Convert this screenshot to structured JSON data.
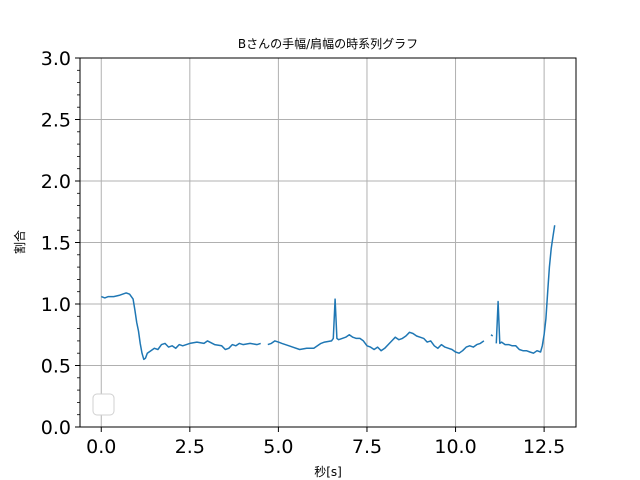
{
  "chart_data": {
    "type": "line",
    "title": "Bさんの手幅/肩幅の時系列グラフ",
    "xlabel": "秒[s]",
    "ylabel": "割合",
    "xlim": [
      -0.6,
      13.4
    ],
    "ylim": [
      0.0,
      3.0
    ],
    "xticks": [
      0.0,
      2.5,
      5.0,
      7.5,
      10.0,
      12.5
    ],
    "xtick_labels": [
      "0.0",
      "2.5",
      "5.0",
      "7.5",
      "10.0",
      "12.5"
    ],
    "yticks": [
      0.0,
      0.5,
      1.0,
      1.5,
      2.0,
      2.5,
      3.0
    ],
    "ytick_labels": [
      "0.0",
      "0.5",
      "1.0",
      "1.5",
      "2.0",
      "2.5",
      "3.0"
    ],
    "grid": true,
    "legend": "lower-left (empty)",
    "line_color": "#1f77b4",
    "series": [
      {
        "segments": [
          [
            [
              0.0,
              1.06
            ],
            [
              0.1,
              1.05
            ],
            [
              0.2,
              1.06
            ],
            [
              0.35,
              1.06
            ],
            [
              0.5,
              1.07
            ],
            [
              0.6,
              1.08
            ],
            [
              0.7,
              1.09
            ],
            [
              0.8,
              1.08
            ],
            [
              0.9,
              1.04
            ],
            [
              0.95,
              0.95
            ],
            [
              1.0,
              0.85
            ],
            [
              1.05,
              0.78
            ],
            [
              1.1,
              0.68
            ],
            [
              1.15,
              0.6
            ],
            [
              1.2,
              0.55
            ],
            [
              1.25,
              0.56
            ],
            [
              1.3,
              0.6
            ],
            [
              1.4,
              0.62
            ],
            [
              1.5,
              0.64
            ],
            [
              1.6,
              0.63
            ],
            [
              1.7,
              0.67
            ],
            [
              1.8,
              0.68
            ],
            [
              1.9,
              0.65
            ],
            [
              2.0,
              0.66
            ],
            [
              2.1,
              0.64
            ],
            [
              2.2,
              0.67
            ],
            [
              2.3,
              0.66
            ],
            [
              2.5,
              0.68
            ],
            [
              2.7,
              0.69
            ],
            [
              2.9,
              0.68
            ],
            [
              3.0,
              0.7
            ],
            [
              3.2,
              0.67
            ],
            [
              3.4,
              0.66
            ],
            [
              3.5,
              0.63
            ],
            [
              3.6,
              0.64
            ],
            [
              3.7,
              0.67
            ],
            [
              3.8,
              0.66
            ],
            [
              3.9,
              0.68
            ],
            [
              4.0,
              0.67
            ],
            [
              4.2,
              0.68
            ],
            [
              4.4,
              0.67
            ],
            [
              4.5,
              0.68
            ]
          ],
          [
            [
              4.7,
              0.67
            ],
            [
              4.8,
              0.68
            ],
            [
              4.9,
              0.7
            ],
            [
              5.0,
              0.69
            ],
            [
              5.1,
              0.68
            ],
            [
              5.3,
              0.66
            ],
            [
              5.4,
              0.65
            ],
            [
              5.6,
              0.63
            ],
            [
              5.8,
              0.64
            ],
            [
              6.0,
              0.64
            ],
            [
              6.2,
              0.68
            ],
            [
              6.3,
              0.69
            ],
            [
              6.5,
              0.7
            ],
            [
              6.55,
              0.72
            ],
            [
              6.6,
              1.04
            ],
            [
              6.65,
              0.72
            ],
            [
              6.7,
              0.71
            ],
            [
              6.8,
              0.72
            ],
            [
              6.9,
              0.73
            ],
            [
              7.0,
              0.75
            ],
            [
              7.1,
              0.73
            ],
            [
              7.2,
              0.72
            ],
            [
              7.3,
              0.72
            ],
            [
              7.4,
              0.7
            ],
            [
              7.5,
              0.66
            ],
            [
              7.6,
              0.65
            ],
            [
              7.7,
              0.63
            ],
            [
              7.8,
              0.65
            ],
            [
              7.9,
              0.62
            ],
            [
              8.0,
              0.64
            ],
            [
              8.1,
              0.67
            ],
            [
              8.2,
              0.7
            ],
            [
              8.3,
              0.73
            ],
            [
              8.4,
              0.71
            ],
            [
              8.5,
              0.72
            ],
            [
              8.6,
              0.74
            ],
            [
              8.7,
              0.77
            ],
            [
              8.8,
              0.76
            ],
            [
              8.9,
              0.74
            ],
            [
              9.0,
              0.73
            ],
            [
              9.1,
              0.72
            ],
            [
              9.2,
              0.69
            ],
            [
              9.3,
              0.7
            ],
            [
              9.4,
              0.66
            ],
            [
              9.5,
              0.64
            ],
            [
              9.6,
              0.67
            ],
            [
              9.7,
              0.65
            ],
            [
              9.8,
              0.64
            ],
            [
              9.9,
              0.63
            ],
            [
              10.0,
              0.61
            ],
            [
              10.1,
              0.6
            ],
            [
              10.2,
              0.62
            ],
            [
              10.3,
              0.65
            ],
            [
              10.4,
              0.66
            ],
            [
              10.5,
              0.65
            ],
            [
              10.6,
              0.67
            ],
            [
              10.7,
              0.68
            ],
            [
              10.8,
              0.7
            ]
          ],
          [
            [
              11.0,
              0.75
            ],
            [
              11.05,
              0.74
            ]
          ],
          [
            [
              11.15,
              0.68
            ],
            [
              11.2,
              1.02
            ],
            [
              11.25,
              0.68
            ],
            [
              11.3,
              0.69
            ],
            [
              11.4,
              0.67
            ],
            [
              11.5,
              0.67
            ],
            [
              11.6,
              0.66
            ],
            [
              11.7,
              0.66
            ],
            [
              11.8,
              0.63
            ],
            [
              11.9,
              0.62
            ],
            [
              12.0,
              0.62
            ],
            [
              12.1,
              0.61
            ],
            [
              12.2,
              0.6
            ],
            [
              12.3,
              0.62
            ],
            [
              12.4,
              0.61
            ],
            [
              12.45,
              0.66
            ],
            [
              12.5,
              0.75
            ],
            [
              12.55,
              0.88
            ],
            [
              12.6,
              1.1
            ],
            [
              12.65,
              1.3
            ],
            [
              12.7,
              1.45
            ],
            [
              12.75,
              1.55
            ],
            [
              12.8,
              1.64
            ]
          ]
        ]
      }
    ]
  }
}
